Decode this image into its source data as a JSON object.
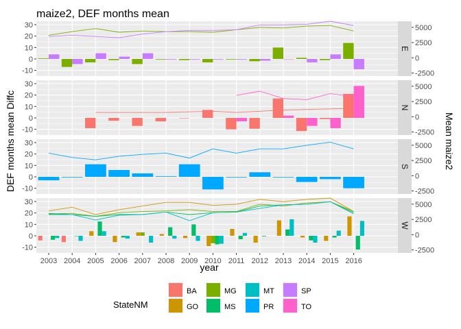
{
  "chart_data": {
    "type": "bar",
    "title": "maize2, DEF months mean",
    "xlabel": "year",
    "ylabel": "DEF months mean Diffc",
    "ylabel_right": "Mean maize2",
    "years": [
      2003,
      2004,
      2005,
      2006,
      2007,
      2008,
      2009,
      2010,
      2011,
      2012,
      2013,
      2014,
      2015,
      2016
    ],
    "left_ticks": [
      -10,
      0,
      10,
      20,
      30
    ],
    "right_ticks": [
      -2500,
      0,
      2500,
      5000
    ],
    "left_ylim": [
      -15,
      33
    ],
    "right_ylim": [
      -3000,
      6000
    ],
    "legend": {
      "title": "StateNM",
      "position": "bottom",
      "entries": [
        {
          "name": "BA",
          "color": "#F8766D"
        },
        {
          "name": "GO",
          "color": "#CD9600"
        },
        {
          "name": "MG",
          "color": "#7CAE00"
        },
        {
          "name": "MS",
          "color": "#00BE67"
        },
        {
          "name": "MT",
          "color": "#00BFC4"
        },
        {
          "name": "PR",
          "color": "#00A9FF"
        },
        {
          "name": "SP",
          "color": "#C77CFF"
        },
        {
          "name": "TO",
          "color": "#FF61CC"
        }
      ]
    },
    "panels": [
      {
        "label": "E",
        "states": [
          "MG",
          "SP"
        ],
        "bars": {
          "MG": [
            0.5,
            -7,
            -3,
            -1,
            -4.5,
            -0.5,
            -1,
            -3,
            -0.5,
            -2,
            10,
            1,
            -1,
            14
          ],
          "SP": [
            4,
            -4.5,
            5,
            2,
            5,
            -0.5,
            -0.5,
            -0.5,
            -0.5,
            -1.5,
            0,
            -3,
            4,
            -9
          ]
        },
        "lines": {
          "MG": [
            3700,
            4300,
            4800,
            4200,
            4400,
            4300,
            4300,
            4200,
            4600,
            5000,
            4900,
            5200,
            5300,
            4400
          ],
          "SP": [
            3500,
            3700,
            3500,
            3300,
            3900,
            4300,
            4500,
            4500,
            4600,
            5400,
            5400,
            5500,
            6000,
            5300
          ]
        }
      },
      {
        "label": "N",
        "states": [
          "BA",
          "TO"
        ],
        "bars": {
          "BA": [
            null,
            null,
            -9,
            -2.5,
            -7,
            -3,
            0,
            7,
            -10,
            -9.5,
            17,
            -11.5,
            -1,
            21
          ],
          "TO": [
            null,
            null,
            null,
            null,
            null,
            null,
            null,
            null,
            -3,
            null,
            2,
            -7,
            -9,
            28
          ]
        },
        "lines": {
          "BA": [
            null,
            null,
            700,
            700,
            700,
            700,
            800,
            900,
            700,
            900,
            1100,
            1200,
            1300,
            1400
          ],
          "TO": [
            null,
            null,
            null,
            null,
            null,
            null,
            null,
            null,
            3500,
            4200,
            3000,
            2800,
            3800,
            3300
          ]
        }
      },
      {
        "label": "S",
        "states": [
          "PR"
        ],
        "bars": {
          "PR": [
            -3,
            -0.5,
            11,
            6,
            3,
            0.5,
            11,
            -11,
            -0.5,
            4,
            -0.5,
            -4.5,
            -2,
            -10
          ]
        },
        "lines": {
          "PR": [
            3700,
            3000,
            2600,
            3200,
            3500,
            3700,
            2900,
            4400,
            3700,
            4400,
            4400,
            5000,
            5500,
            4400
          ]
        }
      },
      {
        "label": "W",
        "states": [
          "BA",
          "GO",
          "MG",
          "MS",
          "MT"
        ],
        "bars": {
          "BA": [
            -4,
            -5.5,
            null,
            null,
            null,
            null,
            null,
            null,
            null,
            null,
            null,
            null,
            null,
            null
          ],
          "GO": [
            null,
            null,
            4,
            -5.5,
            3,
            1.5,
            -2,
            -9,
            6,
            -6,
            13.5,
            -1.5,
            -4.5,
            17
          ],
          "MG": [
            null,
            null,
            null,
            null,
            3,
            null,
            null,
            -6.5,
            null,
            null,
            null,
            null,
            null,
            null
          ],
          "MS": [
            -3.5,
            0,
            12.5,
            -1.5,
            null,
            7.5,
            10,
            -7.5,
            -3,
            -0.5,
            5.5,
            -4,
            -1.5,
            -12
          ],
          "MT": [
            -2,
            -4.5,
            4,
            -2.5,
            -6,
            -2.5,
            -4.5,
            -7,
            2.5,
            null,
            14.5,
            -6,
            4.5,
            13
          ]
        },
        "lines": {
          "GO": [
            3900,
            4500,
            3300,
            4100,
            4700,
            5300,
            5300,
            4800,
            5000,
            5800,
            5400,
            5800,
            6000,
            3800
          ],
          "MG": [
            3400,
            3500,
            3000,
            3600,
            3800,
            3900,
            4100,
            3800,
            3800,
            5000,
            4700,
            5200,
            5400,
            3800
          ],
          "MS": [
            3300,
            3300,
            3000,
            3300,
            3300,
            3700,
            3300,
            3600,
            3700,
            4700,
            4900,
            5000,
            5400,
            3600
          ],
          "MT": [
            3500,
            3300,
            2400,
            3200,
            3300,
            3700,
            2300,
            3600,
            3700,
            4300,
            4900,
            5000,
            5400,
            3400
          ]
        }
      }
    ]
  }
}
